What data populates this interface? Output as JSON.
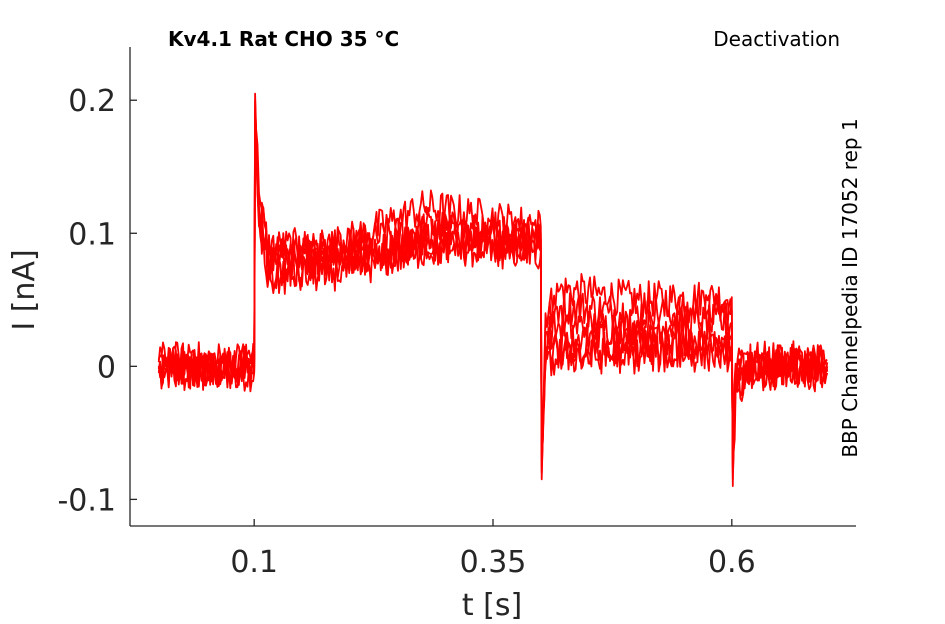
{
  "chart_data": {
    "type": "line",
    "title": "Kv4.1  Rat  CHO  35 °C",
    "subtitle": "Deactivation",
    "annotation": "BBP Channelpedia ID 17052 rep 1",
    "xlabel": "t [s]",
    "ylabel": "I [nA]",
    "xlim": [
      -0.03,
      0.73
    ],
    "ylim": [
      -0.12,
      0.24
    ],
    "xticks": [
      0.1,
      0.35,
      0.6
    ],
    "xtick_labels": [
      "0.1",
      "0.35",
      "0.6"
    ],
    "yticks": [
      -0.1,
      0,
      0.1,
      0.2
    ],
    "ytick_labels": [
      "-0.1",
      "0",
      "0.1",
      "0.2"
    ],
    "grid": false,
    "line_color": "#ff0000",
    "series": [
      {
        "x": [
          0.0,
          0.1,
          0.101,
          0.105,
          0.115,
          0.2,
          0.28,
          0.4,
          0.401,
          0.405,
          0.42,
          0.5,
          0.6,
          0.601,
          0.604,
          0.62,
          0.7
        ],
        "y": [
          -0.005,
          -0.005,
          0.205,
          0.13,
          0.085,
          0.08,
          0.09,
          0.085,
          -0.085,
          0.04,
          0.058,
          0.05,
          0.052,
          -0.09,
          -0.02,
          -0.005,
          -0.005
        ]
      },
      {
        "x": [
          0.0,
          0.1,
          0.101,
          0.105,
          0.115,
          0.2,
          0.28,
          0.4,
          0.401,
          0.405,
          0.42,
          0.5,
          0.6,
          0.601,
          0.604,
          0.62,
          0.7
        ],
        "y": [
          0.0,
          0.0,
          0.2,
          0.125,
          0.09,
          0.09,
          0.105,
          0.095,
          -0.08,
          0.035,
          0.045,
          0.04,
          0.042,
          -0.085,
          -0.015,
          0.0,
          0.0
        ]
      },
      {
        "x": [
          0.0,
          0.1,
          0.101,
          0.105,
          0.115,
          0.2,
          0.28,
          0.4,
          0.401,
          0.405,
          0.42,
          0.5,
          0.6,
          0.601,
          0.604,
          0.62,
          0.7
        ],
        "y": [
          0.005,
          0.005,
          0.195,
          0.12,
          0.08,
          0.095,
          0.12,
          0.105,
          -0.075,
          0.025,
          0.03,
          0.03,
          0.033,
          -0.08,
          -0.01,
          0.005,
          0.005
        ]
      },
      {
        "x": [
          0.0,
          0.1,
          0.101,
          0.105,
          0.115,
          0.2,
          0.28,
          0.4,
          0.401,
          0.405,
          0.42,
          0.5,
          0.6,
          0.601,
          0.604,
          0.62,
          0.7
        ],
        "y": [
          -0.002,
          -0.002,
          0.19,
          0.115,
          0.075,
          0.085,
          0.095,
          0.09,
          -0.07,
          0.015,
          0.02,
          0.02,
          0.023,
          -0.075,
          -0.005,
          -0.002,
          -0.002
        ]
      },
      {
        "x": [
          0.0,
          0.1,
          0.101,
          0.105,
          0.115,
          0.2,
          0.28,
          0.4,
          0.401,
          0.405,
          0.42,
          0.5,
          0.6,
          0.601,
          0.604,
          0.62,
          0.7
        ],
        "y": [
          0.003,
          0.003,
          0.185,
          0.11,
          0.07,
          0.078,
          0.1,
          0.1,
          -0.065,
          0.005,
          0.012,
          0.012,
          0.015,
          -0.07,
          0.0,
          0.003,
          0.003
        ]
      },
      {
        "x": [
          0.0,
          0.1,
          0.101,
          0.105,
          0.115,
          0.2,
          0.28,
          0.4,
          0.401,
          0.405,
          0.42,
          0.5,
          0.6,
          0.601,
          0.604,
          0.62,
          0.7
        ],
        "y": [
          -0.004,
          -0.004,
          0.18,
          0.105,
          0.065,
          0.072,
          0.088,
          0.095,
          -0.06,
          0.0,
          0.008,
          0.008,
          0.01,
          -0.065,
          0.002,
          -0.004,
          -0.004
        ]
      }
    ]
  }
}
